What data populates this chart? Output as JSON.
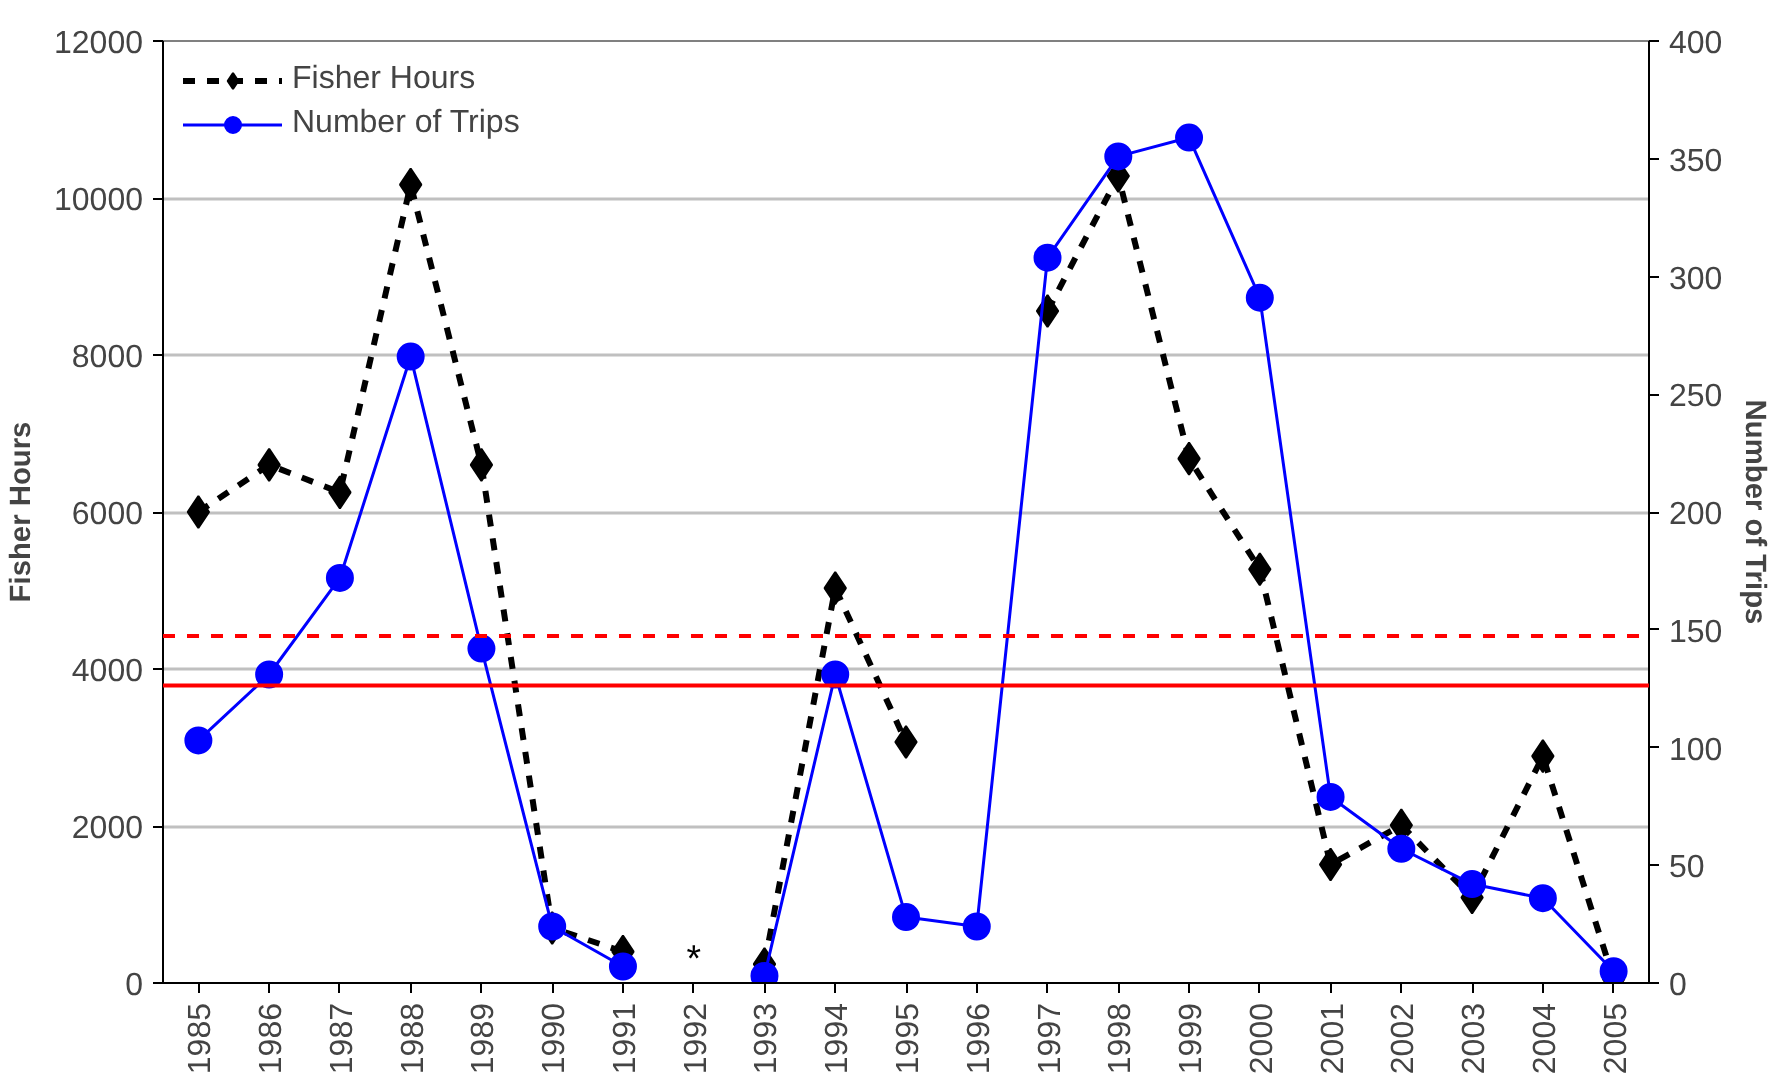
{
  "chart_data": {
    "type": "line",
    "ylabel": "Fisher Hours",
    "y2label": "Number of Trips",
    "categories": [
      "1985",
      "1986",
      "1987",
      "1988",
      "1989",
      "1990",
      "1991",
      "1992",
      "1993",
      "1994",
      "1995",
      "1996",
      "1997",
      "1998",
      "1999",
      "2000",
      "2001",
      "2002",
      "2003",
      "2004",
      "2005"
    ],
    "series": [
      {
        "name": "Fisher Hours",
        "color": "#000000",
        "marker": "diamond",
        "line_style": "dashed",
        "values": [
          6000,
          6600,
          6250,
          10170,
          6600,
          700,
          400,
          null,
          240,
          5030,
          3070,
          null,
          8560,
          10280,
          6680,
          5270,
          1510,
          2010,
          1090,
          2890,
          50
        ]
      },
      {
        "name": "Number of Trips",
        "color": "#0000ff",
        "marker": "circle",
        "line_style": "solid",
        "axis": "y2",
        "values": [
          103,
          131,
          172,
          266,
          142,
          24,
          7,
          null,
          3,
          131,
          28,
          24,
          308,
          351,
          359,
          291,
          79,
          57,
          42,
          36,
          5
        ]
      }
    ],
    "ylim": [
      0,
      12000
    ],
    "yticks": [
      0,
      2000,
      4000,
      6000,
      8000,
      10000,
      12000
    ],
    "y2lim": [
      0,
      400
    ],
    "y2ticks": [
      0,
      50,
      100,
      150,
      200,
      250,
      300,
      350,
      400
    ],
    "ref_lines": [
      {
        "axis": "y",
        "value": 4420,
        "label": null,
        "color": "#ff0000",
        "line_style": "dashed"
      },
      {
        "axis": "y",
        "value": 3790,
        "label": null,
        "color": "#ff0000",
        "line_style": "solid"
      }
    ],
    "annotations": [
      "*"
    ],
    "grid": "y",
    "legend": "top left"
  }
}
